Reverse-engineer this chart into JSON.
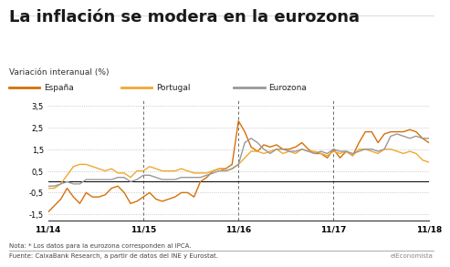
{
  "title": "La inflación se modera en la eurozona",
  "subtitle": "Variación interanual (%)",
  "note": "Nota: * Los datos para la eurozona corresponden al IPCA.",
  "source_left": "Fuente: CaixaBank Research, a partir de datos del INE y Eurostat.",
  "source_right": "elEconomista",
  "legend": [
    "España",
    "Portugal",
    "Eurozona"
  ],
  "colors": {
    "espana": "#D4700A",
    "portugal": "#F0A830",
    "eurozona": "#999999"
  },
  "xtick_labels": [
    "11/14",
    "11/15",
    "11/16",
    "11/17",
    "11/18"
  ],
  "ytick_labels": [
    "-1,5",
    "-0,5",
    "0,5",
    "1,5",
    "2,5",
    "3,5"
  ],
  "ylim": [
    -1.8,
    3.8
  ],
  "yticks": [
    -1.5,
    -0.5,
    0.5,
    1.5,
    2.5,
    3.5
  ],
  "background_color": "#FFFFFF",
  "espana": [
    -1.4,
    -1.1,
    -0.8,
    -0.3,
    -0.7,
    -1.0,
    -0.5,
    -0.7,
    -0.7,
    -0.6,
    -0.3,
    -0.2,
    -0.5,
    -1.0,
    -0.9,
    -0.7,
    -0.5,
    -0.8,
    -0.9,
    -0.8,
    -0.7,
    -0.5,
    -0.5,
    -0.7,
    0.0,
    0.2,
    0.5,
    0.6,
    0.6,
    0.8,
    2.8,
    2.3,
    1.6,
    1.4,
    1.7,
    1.6,
    1.7,
    1.5,
    1.5,
    1.6,
    1.8,
    1.5,
    1.3,
    1.3,
    1.1,
    1.5,
    1.1,
    1.4,
    1.2,
    1.8,
    2.3,
    2.3,
    1.8,
    2.2,
    2.3,
    2.3,
    2.3,
    2.4,
    2.3,
    2.0,
    1.8
  ],
  "portugal": [
    -0.3,
    -0.3,
    -0.1,
    0.3,
    0.7,
    0.8,
    0.8,
    0.7,
    0.6,
    0.5,
    0.6,
    0.4,
    0.4,
    0.2,
    0.5,
    0.5,
    0.7,
    0.6,
    0.5,
    0.5,
    0.5,
    0.6,
    0.5,
    0.4,
    0.4,
    0.4,
    0.5,
    0.6,
    0.5,
    0.6,
    0.8,
    1.1,
    1.4,
    1.4,
    1.3,
    1.4,
    1.5,
    1.3,
    1.4,
    1.3,
    1.5,
    1.4,
    1.4,
    1.3,
    1.2,
    1.4,
    1.3,
    1.4,
    1.2,
    1.5,
    1.5,
    1.4,
    1.3,
    1.5,
    1.5,
    1.4,
    1.3,
    1.4,
    1.3,
    1.0,
    0.9
  ],
  "eurozona": [
    -0.2,
    -0.2,
    -0.1,
    0.0,
    -0.1,
    -0.1,
    0.1,
    0.1,
    0.1,
    0.1,
    0.1,
    0.2,
    0.2,
    0.0,
    0.1,
    0.3,
    0.3,
    0.2,
    0.1,
    0.1,
    0.1,
    0.2,
    0.2,
    0.2,
    0.2,
    0.3,
    0.4,
    0.5,
    0.5,
    0.6,
    0.8,
    1.8,
    2.0,
    1.8,
    1.5,
    1.3,
    1.5,
    1.5,
    1.4,
    1.4,
    1.5,
    1.4,
    1.3,
    1.4,
    1.3,
    1.5,
    1.4,
    1.4,
    1.3,
    1.4,
    1.5,
    1.5,
    1.4,
    1.5,
    2.1,
    2.2,
    2.1,
    2.0,
    2.1,
    2.0,
    2.0
  ]
}
